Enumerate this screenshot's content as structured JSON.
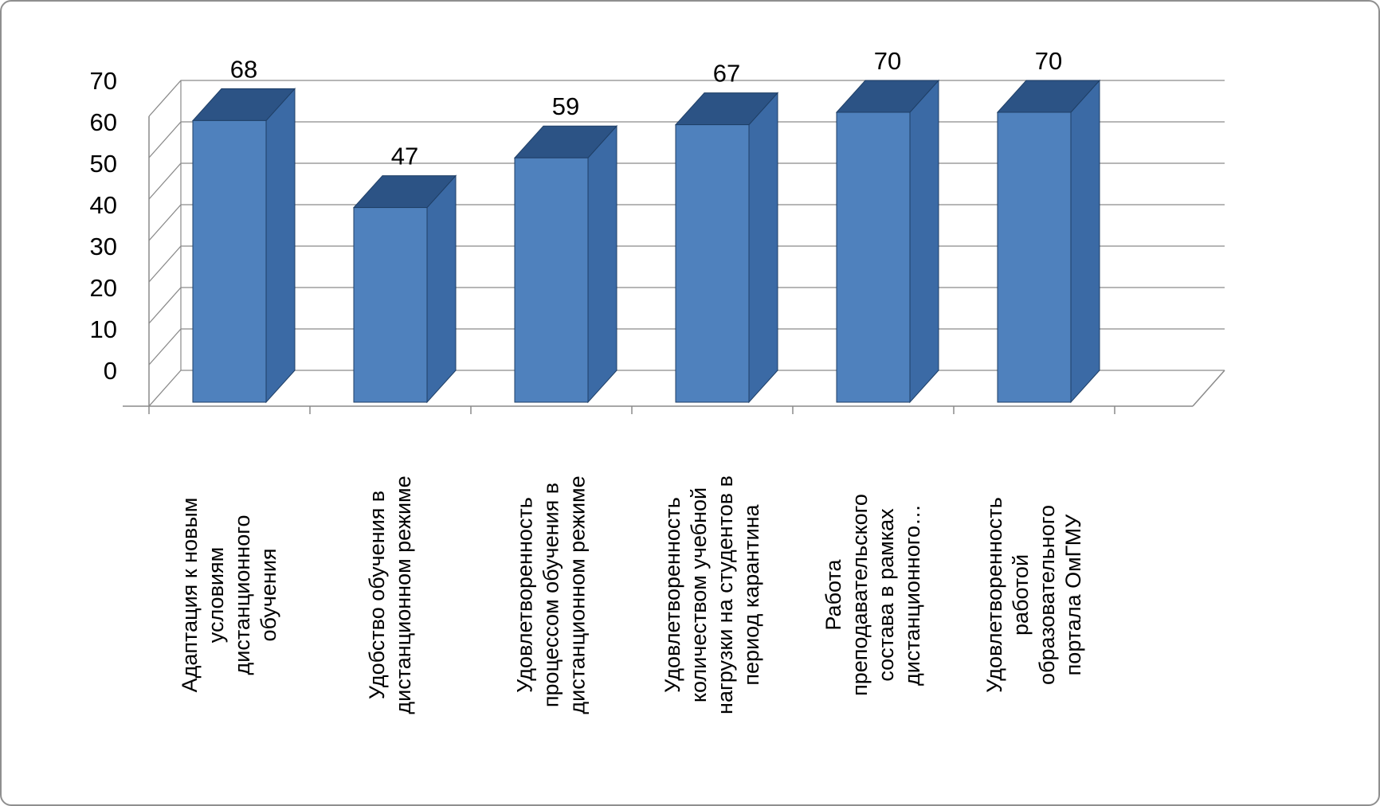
{
  "chart_data": {
    "type": "bar",
    "style": "3d-column",
    "title": "",
    "xlabel": "",
    "ylabel": "",
    "categories": [
      "Адаптация к новым условиям дистанционного обучения",
      "Удобство обучения в дистанционном режиме",
      "Удовлетворенность процессом обучения в дистанционном режиме",
      "Удовлетворенность количеством учебной нагрузки на студентов в период карантина",
      "Работа преподавательского состава в рамках дистанционного…",
      "Удовлетворенность работой образовательного портала ОмГМУ"
    ],
    "category_lines": [
      [
        "Адаптация к новым",
        "условиям",
        "дистанционного",
        "обучения"
      ],
      [
        "Удобство обучения в",
        "дистанционном режиме"
      ],
      [
        "Удовлетворенность",
        "процессом обучения в",
        "дистанционном режиме"
      ],
      [
        "Удовлетворенность",
        "количеством учебной",
        "нагрузки на студентов в",
        "период карантина"
      ],
      [
        "Работа",
        "преподавательского",
        "состава в рамках",
        "дистанционного…"
      ],
      [
        "Удовлетворенность",
        "работой",
        "образовательного",
        "портала ОмГМУ"
      ]
    ],
    "values": [
      68,
      47,
      59,
      67,
      70,
      70
    ],
    "data_labels": [
      "68",
      "47",
      "59",
      "67",
      "70",
      "70"
    ],
    "ylim": [
      0,
      70
    ],
    "yticks": [
      0,
      10,
      20,
      30,
      40,
      50,
      60,
      70
    ],
    "grid": true,
    "legend": "none",
    "colors": {
      "bar_front": "#4f81bd",
      "bar_side": "#3b6aa5",
      "bar_top": "#2c5385",
      "bar_outline": "#1f3f66",
      "gridline": "#8a8a8a",
      "axis": "#8a8a8a",
      "background": "#ffffff",
      "frame_border": "#8f8f8f",
      "text": "#000000"
    }
  }
}
